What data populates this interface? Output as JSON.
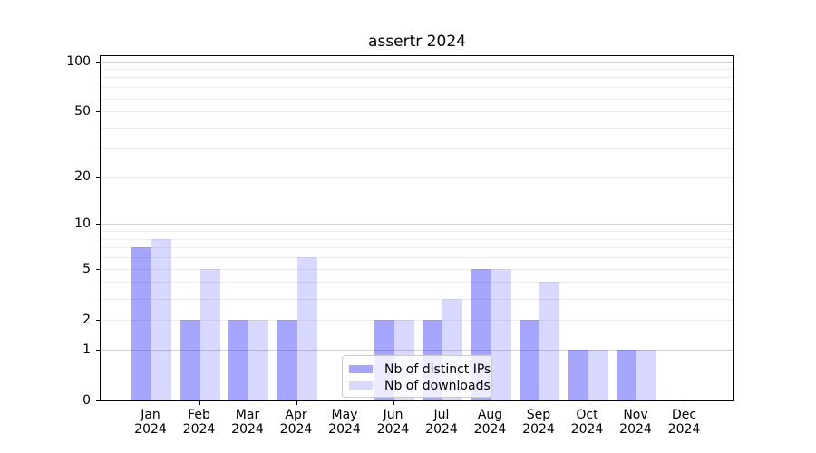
{
  "title": "assertr 2024",
  "legend": {
    "items": [
      {
        "label": "Nb of distinct IPs",
        "color": "rgba(0,0,255,0.35)"
      },
      {
        "label": "Nb of downloads",
        "color": "rgba(0,0,255,0.15)"
      }
    ]
  },
  "colors": {
    "bar_distinct_ips": "rgba(0,0,255,0.35)",
    "bar_downloads": "rgba(0,0,255,0.15)",
    "grid_major": "#d2d2d2",
    "grid_minor": "#ececec",
    "axis": "#000000",
    "legend_border": "#cccccc"
  },
  "chart_data": {
    "type": "bar",
    "title": "assertr 2024",
    "categories": [
      "Jan 2024",
      "Feb 2024",
      "Mar 2024",
      "Apr 2024",
      "May 2024",
      "Jun 2024",
      "Jul 2024",
      "Aug 2024",
      "Sep 2024",
      "Oct 2024",
      "Nov 2024",
      "Dec 2024"
    ],
    "series": [
      {
        "name": "Nb of distinct IPs",
        "values": [
          7,
          2,
          2,
          2,
          0,
          2,
          2,
          5,
          2,
          1,
          1,
          0
        ]
      },
      {
        "name": "Nb of downloads",
        "values": [
          8,
          5,
          2,
          6,
          0,
          2,
          3,
          5,
          4,
          1,
          1,
          0
        ]
      }
    ],
    "xlabel": "",
    "ylabel": "",
    "yscale": "log1p",
    "ylim": [
      0,
      110
    ],
    "yticks": [
      0,
      1,
      2,
      5,
      10,
      20,
      50,
      100
    ],
    "grid_major_values": [
      1,
      10,
      100
    ],
    "grid_minor_values": [
      2,
      3,
      4,
      5,
      6,
      7,
      8,
      9,
      20,
      30,
      40,
      50,
      60,
      70,
      80,
      90
    ],
    "grid": "on",
    "legend_position": "lower center"
  }
}
